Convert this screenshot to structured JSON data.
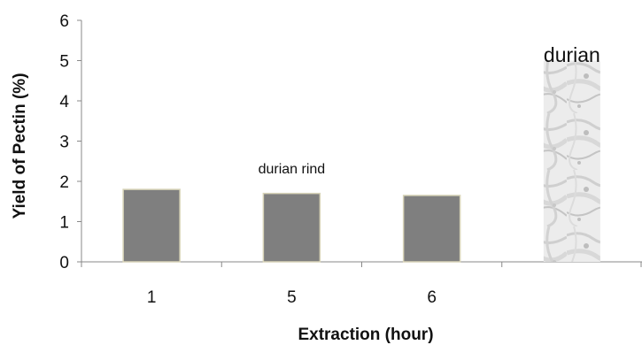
{
  "chart_data": {
    "type": "bar",
    "categories": [
      "1",
      "5",
      "6",
      ""
    ],
    "values": [
      1.8,
      1.7,
      1.65,
      5.0
    ],
    "xlabel": "Extraction (hour)",
    "ylabel": "Yield of Pectin (%)",
    "ylim": [
      0,
      6
    ],
    "yticks": [
      0,
      1,
      2,
      3,
      4,
      5,
      6
    ],
    "grid": false,
    "annotations": [
      "durian rind",
      "durian"
    ],
    "colors": {
      "bar": "#7f7f7f",
      "bar_outline": "#d8d4b8",
      "texture_base": "#ececec",
      "axis": "#888888"
    }
  }
}
